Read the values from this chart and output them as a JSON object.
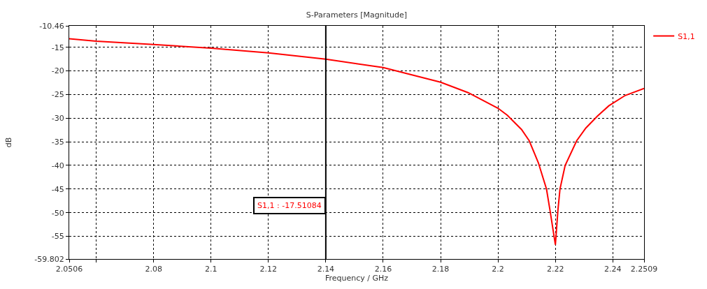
{
  "chart_data": {
    "type": "line",
    "title": "S-Parameters [Magnitude]",
    "xlabel": "Frequency / GHz",
    "ylabel": "dB",
    "x": [
      2.0506,
      2.06,
      2.08,
      2.1,
      2.12,
      2.14,
      2.16,
      2.18,
      2.1896,
      2.2,
      2.2033,
      2.2082,
      2.2109,
      2.2141,
      2.2169,
      2.2181,
      2.22,
      2.2209,
      2.2216,
      2.2234,
      2.2274,
      2.2306,
      2.2346,
      2.2386,
      2.2443,
      2.2509
    ],
    "series": [
      {
        "name": "S1,1",
        "color": "#ff0000",
        "values": [
          -13.2,
          -13.7,
          -14.4,
          -15.2,
          -16.2,
          -17.5,
          -19.3,
          -22.4,
          -24.6,
          -27.9,
          -29.4,
          -32.4,
          -34.8,
          -39.5,
          -45,
          -49.4,
          -56.8,
          -49.4,
          -45,
          -40,
          -34.8,
          -32.1,
          -29.6,
          -27.4,
          -25.2,
          -23.7
        ]
      }
    ],
    "xlim": [
      2.0506,
      2.2509
    ],
    "ylim": [
      -59.802,
      -10.46
    ],
    "xticks": [
      2.0506,
      {
        "value": 2.06,
        "label": null
      },
      2.08,
      2.1,
      2.12,
      2.14,
      2.16,
      2.18,
      2.2,
      2.22,
      2.24,
      2.2509
    ],
    "yticks": [
      -59.802,
      -55,
      -50,
      -45,
      -40,
      -35,
      -30,
      -25,
      -20,
      -15,
      -10.46
    ],
    "ref_lines": [
      {
        "axis": "x",
        "value": 2.14,
        "color": "#000000"
      }
    ],
    "annotations": [
      "S1,1 : -17.51084"
    ],
    "grid": true,
    "legend": "top right",
    "marker": "none",
    "line_style": "solid"
  }
}
